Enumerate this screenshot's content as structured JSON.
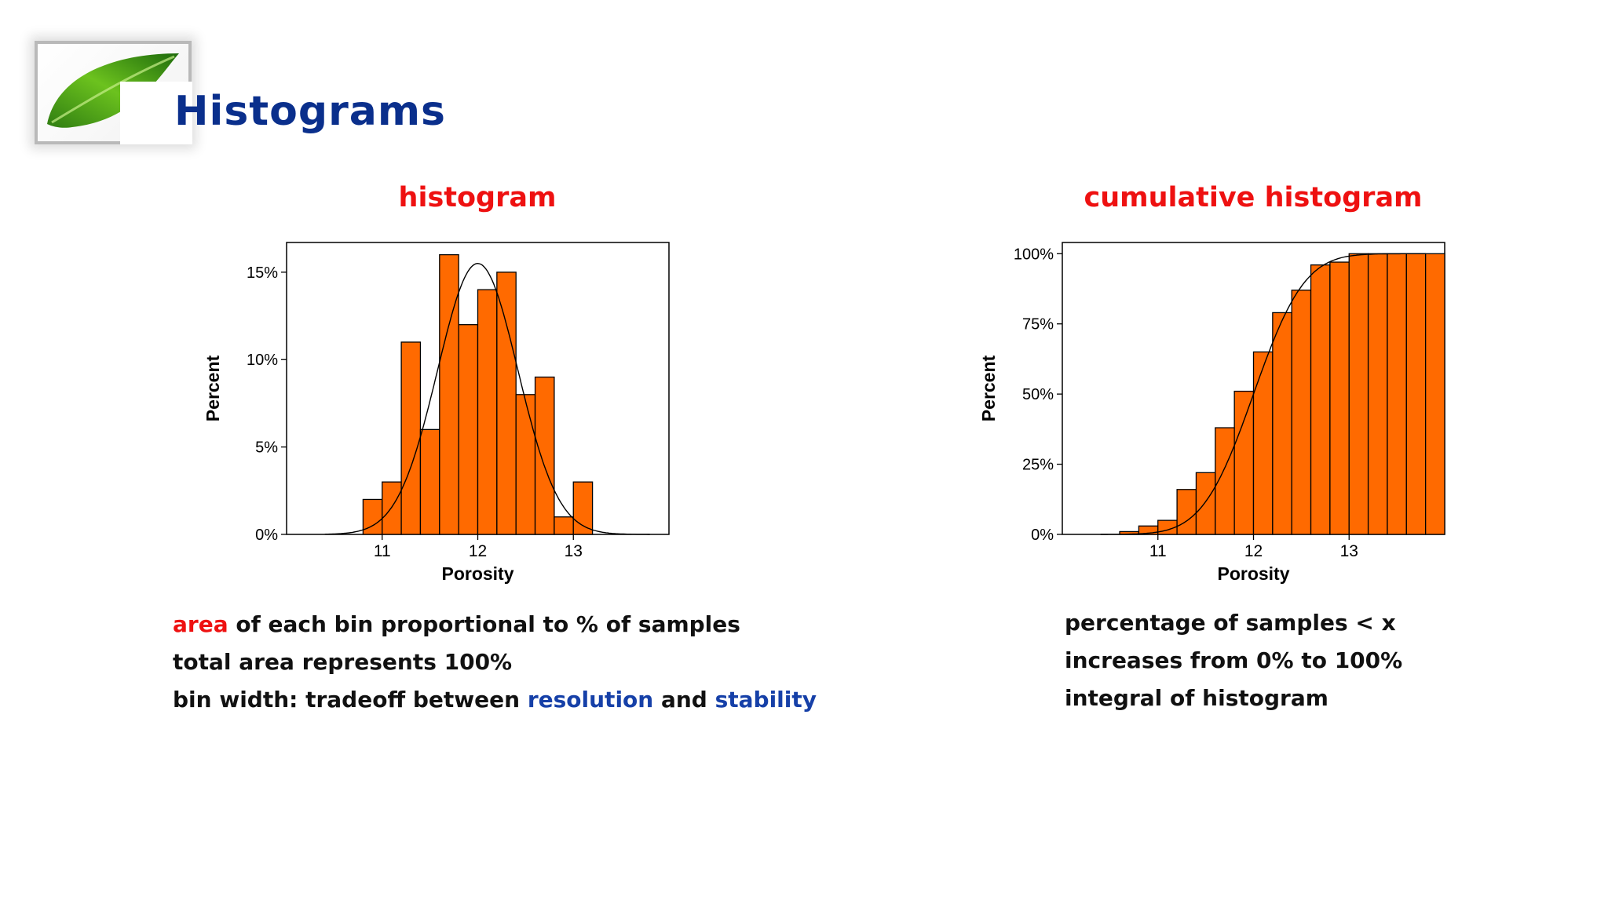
{
  "slide": {
    "title": "Histograms",
    "logo": "leaf-logo-icon"
  },
  "chart_data": [
    {
      "type": "bar",
      "title": "histogram",
      "xlabel": "Porosity",
      "ylabel": "Percent",
      "xlim": [
        10.0,
        14.0
      ],
      "ylim": [
        0,
        16.7
      ],
      "xticks": [
        11,
        12,
        13
      ],
      "xtick_labels": [
        "11",
        "12",
        "13"
      ],
      "yticks": [
        0,
        5,
        10,
        15
      ],
      "ytick_labels": [
        "0%",
        "5%",
        "10%",
        "15%"
      ],
      "bin_width": 0.2,
      "bin_starts": [
        10.8,
        11.0,
        11.2,
        11.4,
        11.6,
        11.8,
        12.0,
        12.2,
        12.4,
        12.6,
        12.8,
        13.0
      ],
      "values": [
        2,
        3,
        11,
        6,
        16,
        12,
        14,
        15,
        8,
        9,
        1,
        3
      ],
      "fit_curve": {
        "type": "normal",
        "mean": 12.0,
        "peak": 15.5,
        "sd": 0.42
      }
    },
    {
      "type": "bar",
      "title": "cumulative histogram",
      "xlabel": "Porosity",
      "ylabel": "Percent",
      "xlim": [
        10.0,
        14.0
      ],
      "ylim": [
        0,
        104
      ],
      "xticks": [
        11,
        12,
        13
      ],
      "xtick_labels": [
        "11",
        "12",
        "13"
      ],
      "yticks": [
        0,
        25,
        50,
        75,
        100
      ],
      "ytick_labels": [
        "0%",
        "25%",
        "50%",
        "75%",
        "100%"
      ],
      "bin_width": 0.2,
      "bin_starts": [
        10.6,
        10.8,
        11.0,
        11.2,
        11.4,
        11.6,
        11.8,
        12.0,
        12.2,
        12.4,
        12.6,
        12.8,
        13.0,
        13.2,
        13.4,
        13.6,
        13.8
      ],
      "values": [
        1,
        3,
        5,
        16,
        22,
        38,
        51,
        65,
        79,
        87,
        96,
        97,
        100,
        100,
        100,
        100,
        100
      ],
      "fit_curve": {
        "type": "normal_cdf",
        "mean": 12.0,
        "sd": 0.42
      }
    }
  ],
  "left_bullets": {
    "line1_kw": "area",
    "line1_rest": " of each bin proportional to % of samples",
    "line2": "total area represents 100%",
    "line3_start": "bin width: tradeoff between ",
    "line3_kw1": "resolution",
    "line3_mid": " and ",
    "line3_kw2": "stability"
  },
  "right_bullets": {
    "line1": "percentage of samples < x",
    "line2": "increases from 0% to 100%",
    "line3": "integral of histogram"
  },
  "colors": {
    "bar_fill": "#ff6a00",
    "title_blue": "#0a2f8c",
    "chart_title_red": "#ee1111",
    "keyword_blue": "#1640a8"
  }
}
